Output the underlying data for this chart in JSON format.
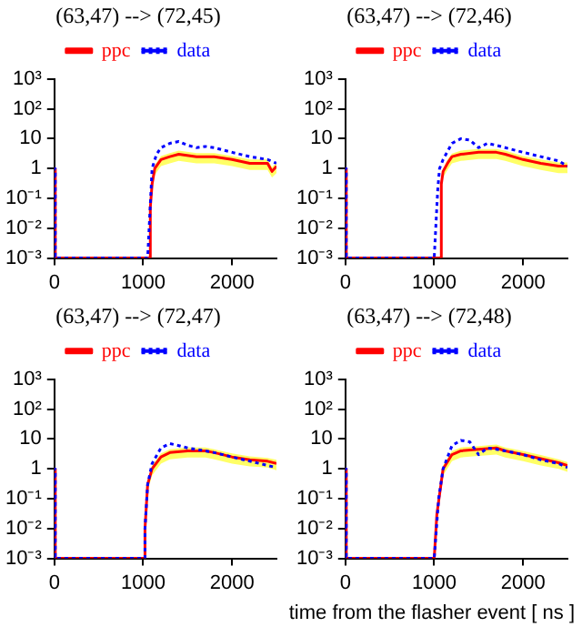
{
  "chart_data": [
    {
      "type": "line",
      "title": "(63,47) --> (72,45)",
      "xlim": [
        0,
        2500
      ],
      "xticks": [
        0,
        1000,
        2000
      ],
      "ylim": [
        0.001,
        1000
      ],
      "log": "y",
      "grid": false,
      "legend": "top",
      "marker": "none",
      "yticks": [
        {
          "value": 1000,
          "label": "10³"
        },
        {
          "value": 100,
          "label": "10²"
        },
        {
          "value": 10,
          "label": "10"
        },
        {
          "value": 1,
          "label": "1"
        },
        {
          "value": 0.1,
          "label": "10⁻¹"
        },
        {
          "value": 0.01,
          "label": "10⁻²"
        },
        {
          "value": 0.001,
          "label": "10⁻³"
        }
      ],
      "series": [
        {
          "name": "ppc",
          "color": "#ff0000",
          "line_style": "solid",
          "x": [
            0,
            0,
            10,
            10,
            1070,
            1080,
            1100,
            1130,
            1200,
            1300,
            1400,
            1600,
            1800,
            2000,
            2200,
            2400,
            2450,
            2500
          ],
          "values": [
            0.001,
            1,
            1,
            0.001,
            0.001,
            0.05,
            0.3,
            1,
            2,
            2.5,
            3,
            2.5,
            2.5,
            2,
            1.5,
            1.5,
            0.8,
            1.2
          ],
          "upper": [
            0.001,
            1,
            1,
            0.001,
            0.001,
            0.07,
            0.4,
            1.3,
            2.6,
            3.3,
            4,
            3.3,
            3.3,
            2.6,
            2,
            2,
            1.1,
            1.6
          ],
          "lower": [
            0.001,
            1,
            1,
            0.001,
            0.001,
            0.03,
            0.18,
            0.6,
            1.2,
            1.5,
            1.8,
            1.5,
            1.5,
            1.2,
            0.9,
            0.9,
            0.5,
            0.7
          ]
        },
        {
          "name": "data",
          "color": "#0000ff",
          "line_style": "dotted",
          "x": [
            0,
            0,
            10,
            10,
            1050,
            1100,
            1150,
            1200,
            1300,
            1400,
            1500,
            1600,
            1700,
            1800,
            2000,
            2200,
            2400,
            2500
          ],
          "values": [
            0.001,
            1,
            1,
            0.001,
            0.001,
            1,
            3,
            5,
            7,
            8,
            6,
            5,
            5.5,
            5,
            3.5,
            2.5,
            2,
            1.5
          ]
        }
      ]
    },
    {
      "type": "line",
      "title": "(63,47) --> (72,46)",
      "xlim": [
        0,
        2500
      ],
      "xticks": [
        0,
        1000,
        2000
      ],
      "ylim": [
        0.001,
        1000
      ],
      "log": "y",
      "grid": false,
      "legend": "top",
      "marker": "none",
      "yticks": [
        {
          "value": 1000,
          "label": "10³"
        },
        {
          "value": 100,
          "label": "10²"
        },
        {
          "value": 10,
          "label": "10"
        },
        {
          "value": 1,
          "label": "1"
        },
        {
          "value": 0.1,
          "label": "10⁻¹"
        },
        {
          "value": 0.01,
          "label": "10⁻²"
        },
        {
          "value": 0.001,
          "label": "10⁻³"
        }
      ],
      "series": [
        {
          "name": "ppc",
          "color": "#ff0000",
          "line_style": "solid",
          "x": [
            0,
            0,
            10,
            10,
            1070,
            1080,
            1100,
            1150,
            1200,
            1300,
            1500,
            1700,
            1800,
            2000,
            2200,
            2400,
            2500
          ],
          "values": [
            0.001,
            1,
            1,
            0.001,
            0.001,
            0.3,
            0.8,
            1.5,
            2.5,
            3,
            3.5,
            3.5,
            3,
            2,
            1.5,
            1.2,
            1.2
          ],
          "upper": [
            0.001,
            1,
            1,
            0.001,
            0.001,
            0.4,
            1,
            2,
            3.2,
            4,
            4.5,
            4.5,
            4,
            2.6,
            2,
            1.6,
            1.6
          ],
          "lower": [
            0.001,
            1,
            1,
            0.001,
            0.001,
            0.18,
            0.5,
            0.9,
            1.5,
            1.8,
            2.1,
            2.1,
            1.8,
            1.2,
            0.9,
            0.7,
            0.7
          ]
        },
        {
          "name": "data",
          "color": "#0000ff",
          "line_style": "dotted",
          "x": [
            0,
            0,
            10,
            10,
            1000,
            1040,
            1060,
            1100,
            1200,
            1300,
            1400,
            1500,
            1600,
            1700,
            1800,
            2000,
            2200,
            2400,
            2500
          ],
          "values": [
            0.001,
            1,
            1,
            0.001,
            0.001,
            0.2,
            1,
            2,
            7,
            10,
            9,
            5,
            7,
            6,
            5,
            3.5,
            2.5,
            1.8,
            1.2
          ]
        }
      ]
    },
    {
      "type": "line",
      "title": "(63,47) --> (72,47)",
      "xlim": [
        0,
        2500
      ],
      "xticks": [
        0,
        1000,
        2000
      ],
      "ylim": [
        0.001,
        1000
      ],
      "log": "y",
      "grid": false,
      "legend": "top",
      "marker": "none",
      "yticks": [
        {
          "value": 1000,
          "label": "10³"
        },
        {
          "value": 100,
          "label": "10²"
        },
        {
          "value": 10,
          "label": "10"
        },
        {
          "value": 1,
          "label": "1"
        },
        {
          "value": 0.1,
          "label": "10⁻¹"
        },
        {
          "value": 0.01,
          "label": "10⁻²"
        },
        {
          "value": 0.001,
          "label": "10⁻³"
        }
      ],
      "series": [
        {
          "name": "ppc",
          "color": "#ff0000",
          "line_style": "solid",
          "x": [
            0,
            0,
            10,
            10,
            1020,
            1020,
            1050,
            1100,
            1200,
            1300,
            1500,
            1700,
            1800,
            2000,
            2200,
            2400,
            2500
          ],
          "values": [
            0.001,
            1,
            1,
            0.001,
            0.001,
            0.01,
            0.3,
            1,
            2.5,
            3.5,
            4,
            4,
            3.5,
            2.5,
            2,
            1.8,
            1.5
          ],
          "upper": [
            0.001,
            1,
            1,
            0.001,
            0.001,
            0.01,
            0.4,
            1.3,
            3.3,
            4.5,
            5.2,
            5.2,
            4.5,
            3.3,
            2.6,
            2.3,
            2
          ],
          "lower": [
            0.001,
            1,
            1,
            0.001,
            0.001,
            0.01,
            0.18,
            0.6,
            1.5,
            2.1,
            2.4,
            2.4,
            2.1,
            1.5,
            1.2,
            1.1,
            0.9
          ]
        },
        {
          "name": "data",
          "color": "#0000ff",
          "line_style": "dotted",
          "x": [
            0,
            0,
            10,
            10,
            1020,
            1020,
            1050,
            1100,
            1200,
            1300,
            1400,
            1500,
            1700,
            1800,
            2000,
            2200,
            2400,
            2500
          ],
          "values": [
            0.001,
            1,
            1,
            0.001,
            0.001,
            0.01,
            0.3,
            1.5,
            5,
            7,
            6,
            5,
            4,
            3.5,
            2.5,
            1.8,
            1.3,
            1.1
          ]
        }
      ]
    },
    {
      "type": "line",
      "title": "(63,47) --> (72,48)",
      "xlabel": "time from the flasher event [ ns ]",
      "xlim": [
        0,
        2500
      ],
      "xticks": [
        0,
        1000,
        2000
      ],
      "ylim": [
        0.001,
        1000
      ],
      "log": "y",
      "grid": false,
      "legend": "top",
      "marker": "none",
      "yticks": [
        {
          "value": 1000,
          "label": "10³"
        },
        {
          "value": 100,
          "label": "10²"
        },
        {
          "value": 10,
          "label": "10"
        },
        {
          "value": 1,
          "label": "1"
        },
        {
          "value": 0.1,
          "label": "10⁻¹"
        },
        {
          "value": 0.01,
          "label": "10⁻²"
        },
        {
          "value": 0.001,
          "label": "10⁻³"
        }
      ],
      "series": [
        {
          "name": "ppc",
          "color": "#ff0000",
          "line_style": "solid",
          "x": [
            0,
            0,
            10,
            10,
            1000,
            1030,
            1100,
            1200,
            1300,
            1500,
            1700,
            1800,
            2000,
            2200,
            2400,
            2500
          ],
          "values": [
            0.001,
            1,
            1,
            0.001,
            0.001,
            0.03,
            1,
            3,
            4,
            4.5,
            5,
            4,
            3,
            2.2,
            1.6,
            1.3
          ],
          "upper": [
            0.001,
            1,
            1,
            0.001,
            0.001,
            0.04,
            1.3,
            4,
            5.2,
            5.8,
            6.5,
            5.2,
            4,
            2.9,
            2.1,
            1.7
          ],
          "lower": [
            0.001,
            1,
            1,
            0.001,
            0.001,
            0.018,
            0.6,
            1.8,
            2.4,
            2.7,
            3,
            2.4,
            1.8,
            1.3,
            1,
            0.8
          ]
        },
        {
          "name": "data",
          "color": "#0000ff",
          "line_style": "dotted",
          "x": [
            0,
            0,
            10,
            10,
            1000,
            1050,
            1100,
            1200,
            1300,
            1400,
            1500,
            1600,
            1700,
            1800,
            2000,
            2200,
            2400,
            2500
          ],
          "values": [
            0.001,
            1,
            1,
            0.001,
            0.001,
            0.1,
            1,
            6,
            9,
            8,
            3,
            5,
            4.5,
            4,
            3,
            2,
            1.5,
            1.1
          ]
        }
      ]
    }
  ]
}
